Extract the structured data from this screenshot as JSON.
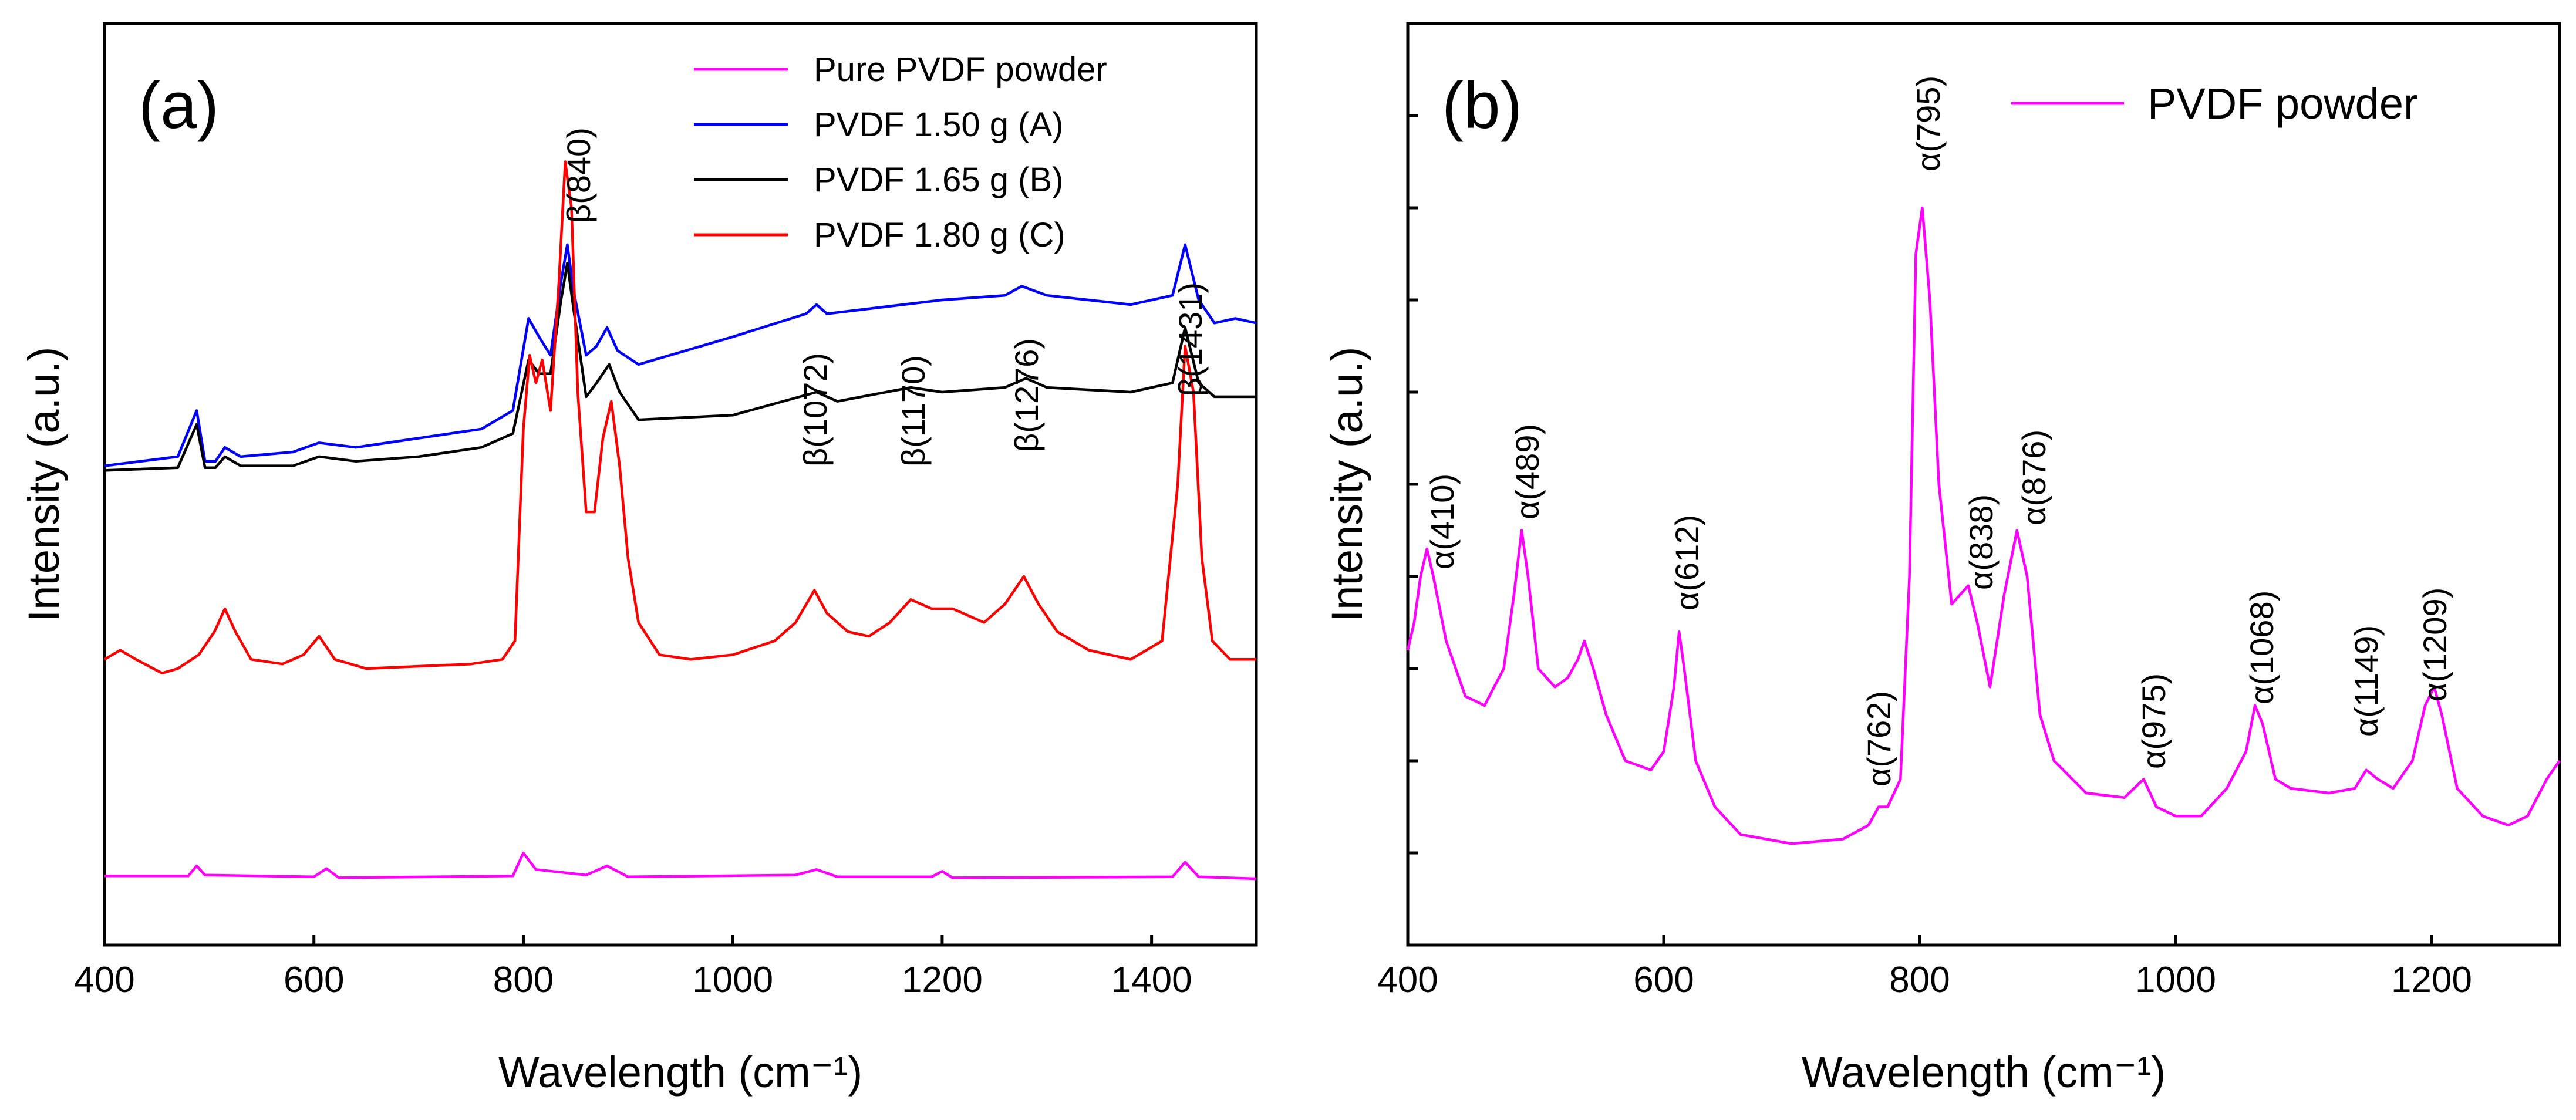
{
  "chart_data": [
    {
      "type": "line",
      "panel_label": "(a)",
      "xlabel": "Wavelength (cm⁻¹)",
      "ylabel": "Intensity (a.u.)",
      "xlim": [
        400,
        1500
      ],
      "ylim": [
        0,
        100
      ],
      "xticks": [
        400,
        600,
        800,
        1000,
        1200,
        1400
      ],
      "legend_position": "top-right",
      "grid": false,
      "series": [
        {
          "name": "Pure PVDF powder",
          "color": "#ff00ff",
          "points": [
            [
              400,
              7.5
            ],
            [
              480,
              7.5
            ],
            [
              488,
              8.6
            ],
            [
              496,
              7.6
            ],
            [
              600,
              7.4
            ],
            [
              612,
              8.3
            ],
            [
              624,
              7.3
            ],
            [
              790,
              7.5
            ],
            [
              800,
              10
            ],
            [
              812,
              8.2
            ],
            [
              860,
              7.6
            ],
            [
              880,
              8.6
            ],
            [
              900,
              7.4
            ],
            [
              1060,
              7.6
            ],
            [
              1080,
              8.2
            ],
            [
              1100,
              7.4
            ],
            [
              1190,
              7.4
            ],
            [
              1200,
              8
            ],
            [
              1210,
              7.3
            ],
            [
              1420,
              7.4
            ],
            [
              1432,
              9
            ],
            [
              1445,
              7.4
            ],
            [
              1500,
              7.2
            ]
          ]
        },
        {
          "name": "PVDF 1.50 g (A)",
          "color": "#0000ff",
          "points": [
            [
              400,
              52
            ],
            [
              470,
              53
            ],
            [
              488,
              58
            ],
            [
              496,
              52.5
            ],
            [
              506,
              52.5
            ],
            [
              515,
              54
            ],
            [
              530,
              53
            ],
            [
              580,
              53.5
            ],
            [
              605,
              54.5
            ],
            [
              640,
              54
            ],
            [
              700,
              55
            ],
            [
              760,
              56
            ],
            [
              790,
              58
            ],
            [
              805,
              68
            ],
            [
              815,
              66
            ],
            [
              826,
              64
            ],
            [
              836,
              72
            ],
            [
              842,
              76
            ],
            [
              848,
              71
            ],
            [
              860,
              64
            ],
            [
              870,
              65
            ],
            [
              880,
              67
            ],
            [
              890,
              64.5
            ],
            [
              910,
              63
            ],
            [
              1000,
              66
            ],
            [
              1070,
              68.5
            ],
            [
              1080,
              69.5
            ],
            [
              1090,
              68.5
            ],
            [
              1200,
              70
            ],
            [
              1260,
              70.5
            ],
            [
              1276,
              71.5
            ],
            [
              1300,
              70.5
            ],
            [
              1380,
              69.5
            ],
            [
              1420,
              70.5
            ],
            [
              1432,
              76
            ],
            [
              1445,
              70
            ],
            [
              1460,
              67.5
            ],
            [
              1480,
              68
            ],
            [
              1500,
              67.5
            ]
          ]
        },
        {
          "name": "PVDF 1.65 g (B)",
          "color": "#000000",
          "points": [
            [
              400,
              51.5
            ],
            [
              470,
              51.8
            ],
            [
              488,
              56.5
            ],
            [
              496,
              51.8
            ],
            [
              506,
              51.8
            ],
            [
              515,
              53
            ],
            [
              530,
              52
            ],
            [
              580,
              52
            ],
            [
              605,
              53
            ],
            [
              640,
              52.5
            ],
            [
              700,
              53
            ],
            [
              760,
              54
            ],
            [
              790,
              55.5
            ],
            [
              805,
              63.5
            ],
            [
              815,
              62
            ],
            [
              826,
              62
            ],
            [
              836,
              70
            ],
            [
              842,
              74
            ],
            [
              848,
              69
            ],
            [
              860,
              59.5
            ],
            [
              870,
              61
            ],
            [
              882,
              63
            ],
            [
              892,
              60
            ],
            [
              910,
              57
            ],
            [
              1000,
              57.5
            ],
            [
              1080,
              60
            ],
            [
              1100,
              59
            ],
            [
              1170,
              60.5
            ],
            [
              1200,
              60
            ],
            [
              1260,
              60.5
            ],
            [
              1280,
              61.5
            ],
            [
              1300,
              60.5
            ],
            [
              1380,
              60
            ],
            [
              1420,
              61
            ],
            [
              1432,
              67
            ],
            [
              1445,
              61
            ],
            [
              1460,
              59.5
            ],
            [
              1500,
              59.5
            ]
          ]
        },
        {
          "name": "PVDF 1.80 g (C)",
          "color": "#ff0000",
          "points": [
            [
              400,
              31
            ],
            [
              415,
              32
            ],
            [
              430,
              31
            ],
            [
              455,
              29.5
            ],
            [
              470,
              30
            ],
            [
              490,
              31.5
            ],
            [
              505,
              34
            ],
            [
              515,
              36.5
            ],
            [
              525,
              34
            ],
            [
              540,
              31
            ],
            [
              570,
              30.5
            ],
            [
              590,
              31.5
            ],
            [
              605,
              33.5
            ],
            [
              620,
              31
            ],
            [
              650,
              30
            ],
            [
              750,
              30.5
            ],
            [
              780,
              31
            ],
            [
              792,
              33
            ],
            [
              800,
              56
            ],
            [
              806,
              64
            ],
            [
              812,
              61
            ],
            [
              818,
              63.5
            ],
            [
              826,
              58
            ],
            [
              834,
              72
            ],
            [
              840,
              85
            ],
            [
              846,
              80
            ],
            [
              852,
              60
            ],
            [
              860,
              47
            ],
            [
              868,
              47
            ],
            [
              876,
              55
            ],
            [
              884,
              59
            ],
            [
              892,
              52
            ],
            [
              900,
              42
            ],
            [
              910,
              35
            ],
            [
              930,
              31.5
            ],
            [
              960,
              31
            ],
            [
              1000,
              31.5
            ],
            [
              1040,
              33
            ],
            [
              1060,
              35
            ],
            [
              1078,
              38.5
            ],
            [
              1090,
              36
            ],
            [
              1110,
              34
            ],
            [
              1130,
              33.5
            ],
            [
              1150,
              35
            ],
            [
              1170,
              37.5
            ],
            [
              1190,
              36.5
            ],
            [
              1210,
              36.5
            ],
            [
              1240,
              35
            ],
            [
              1260,
              37
            ],
            [
              1278,
              40
            ],
            [
              1292,
              37
            ],
            [
              1310,
              34
            ],
            [
              1340,
              32
            ],
            [
              1380,
              31
            ],
            [
              1410,
              33
            ],
            [
              1425,
              50
            ],
            [
              1432,
              65
            ],
            [
              1440,
              60
            ],
            [
              1448,
              42
            ],
            [
              1458,
              33
            ],
            [
              1475,
              31
            ],
            [
              1500,
              31
            ]
          ]
        }
      ],
      "annotations": [
        {
          "text": "β(840)",
          "x": 840
        },
        {
          "text": "β(1072)",
          "x": 1072
        },
        {
          "text": "β(1170)",
          "x": 1170
        },
        {
          "text": "β(1276)",
          "x": 1276
        },
        {
          "text": "β(1431)",
          "x": 1431
        }
      ]
    },
    {
      "type": "line",
      "panel_label": "(b)",
      "xlabel": "Wavelength (cm⁻¹)",
      "ylabel": "Intensity (a.u.)",
      "xlim": [
        400,
        1300
      ],
      "ylim": [
        0,
        100
      ],
      "xticks": [
        400,
        600,
        800,
        1000,
        1200
      ],
      "legend_position": "top-right",
      "grid": false,
      "series": [
        {
          "name": "PVDF powder",
          "color": "#ff00ff",
          "points": [
            [
              400,
              32
            ],
            [
              405,
              35
            ],
            [
              410,
              40
            ],
            [
              415,
              43
            ],
            [
              420,
              40
            ],
            [
              430,
              33
            ],
            [
              445,
              27
            ],
            [
              460,
              26
            ],
            [
              475,
              30
            ],
            [
              483,
              38
            ],
            [
              489,
              45
            ],
            [
              494,
              40
            ],
            [
              502,
              30
            ],
            [
              515,
              28
            ],
            [
              525,
              29
            ],
            [
              533,
              31
            ],
            [
              538,
              33
            ],
            [
              545,
              30
            ],
            [
              555,
              25
            ],
            [
              570,
              20
            ],
            [
              590,
              19
            ],
            [
              600,
              21
            ],
            [
              608,
              28
            ],
            [
              612,
              34
            ],
            [
              616,
              30
            ],
            [
              625,
              20
            ],
            [
              640,
              15
            ],
            [
              660,
              12
            ],
            [
              700,
              11
            ],
            [
              740,
              11.5
            ],
            [
              760,
              13
            ],
            [
              768,
              15
            ],
            [
              775,
              15
            ],
            [
              785,
              18
            ],
            [
              792,
              40
            ],
            [
              797,
              75
            ],
            [
              802,
              80
            ],
            [
              808,
              70
            ],
            [
              815,
              50
            ],
            [
              825,
              37
            ],
            [
              838,
              39
            ],
            [
              845,
              35
            ],
            [
              855,
              28
            ],
            [
              866,
              38
            ],
            [
              876,
              45
            ],
            [
              884,
              40
            ],
            [
              894,
              25
            ],
            [
              905,
              20
            ],
            [
              930,
              16.5
            ],
            [
              960,
              16
            ],
            [
              975,
              18
            ],
            [
              985,
              15
            ],
            [
              1000,
              14
            ],
            [
              1020,
              14
            ],
            [
              1040,
              17
            ],
            [
              1055,
              21
            ],
            [
              1062,
              26
            ],
            [
              1068,
              24
            ],
            [
              1078,
              18
            ],
            [
              1090,
              17
            ],
            [
              1120,
              16.5
            ],
            [
              1140,
              17
            ],
            [
              1149,
              19
            ],
            [
              1158,
              18
            ],
            [
              1170,
              17
            ],
            [
              1185,
              20
            ],
            [
              1195,
              26
            ],
            [
              1202,
              28
            ],
            [
              1208,
              25
            ],
            [
              1220,
              17
            ],
            [
              1240,
              14
            ],
            [
              1260,
              13
            ],
            [
              1275,
              14
            ],
            [
              1290,
              18
            ],
            [
              1300,
              20
            ]
          ]
        }
      ],
      "annotations": [
        {
          "text": "α(410)",
          "x": 410
        },
        {
          "text": "α(489)",
          "x": 489
        },
        {
          "text": "α(612)",
          "x": 612
        },
        {
          "text": "α(762)",
          "x": 762
        },
        {
          "text": "α(795)",
          "x": 795
        },
        {
          "text": "α(838)",
          "x": 838
        },
        {
          "text": "α(876)",
          "x": 876
        },
        {
          "text": "α(975)",
          "x": 975
        },
        {
          "text": "α(1068)",
          "x": 1068
        },
        {
          "text": "α(1149)",
          "x": 1149
        },
        {
          "text": "α(1209)",
          "x": 1209
        }
      ]
    }
  ]
}
